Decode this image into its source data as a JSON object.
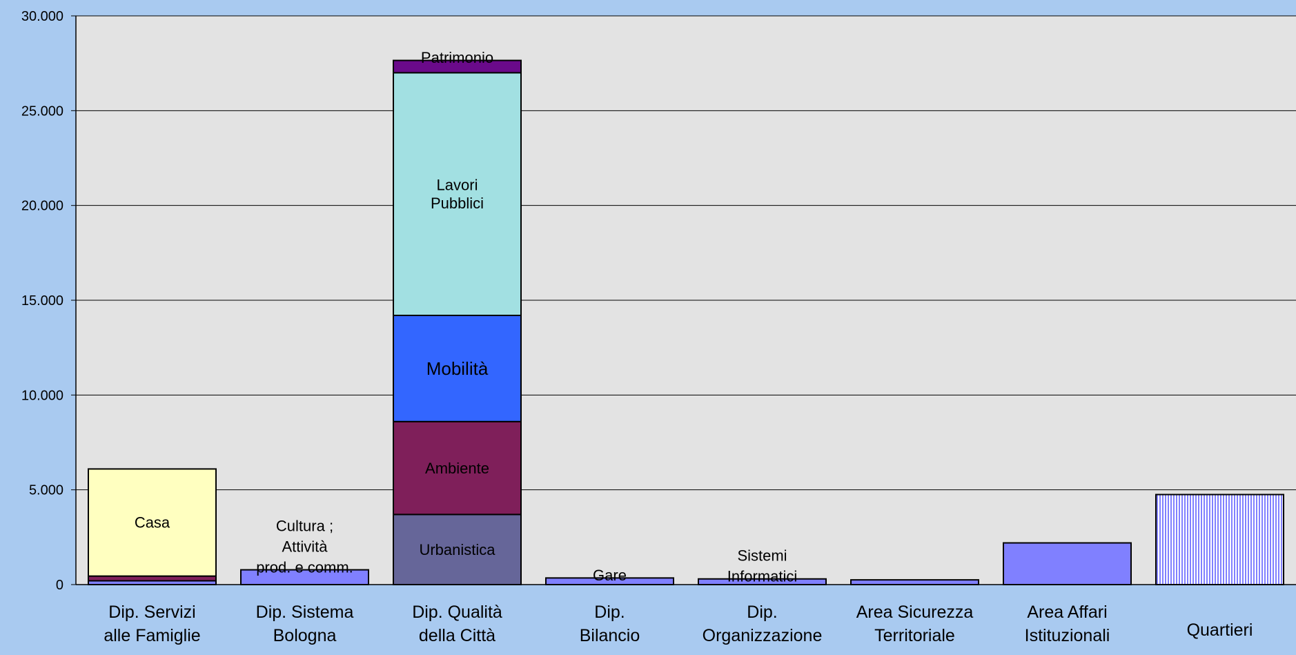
{
  "chart_data": {
    "type": "bar",
    "stacked": true,
    "ylim": [
      0,
      30000
    ],
    "yticks": [
      0,
      5000,
      10000,
      15000,
      20000,
      25000,
      30000
    ],
    "ytick_labels": [
      "0",
      "5.000",
      "10.000",
      "15.000",
      "20.000",
      "25.000",
      "30.000"
    ],
    "grid": true,
    "legend": "none",
    "title": "",
    "xlabel": "",
    "ylabel": "",
    "colors": {
      "plot_background": "#e3e3e3",
      "page_background": "#a9caf0",
      "gridline": "#000000"
    },
    "bars": [
      {
        "category": "Dip. Servizi\nalle Famiglie",
        "segments": [
          {
            "label": "",
            "value": 200,
            "color": "#8080ff"
          },
          {
            "label": "",
            "value": 250,
            "color": "#7f1f5a"
          },
          {
            "label": "Casa",
            "value": 5650,
            "color": "#ffffc0"
          }
        ]
      },
      {
        "category": "Dip. Sistema\nBologna",
        "segments": [
          {
            "label": "Cultura ;\nAttività\nprod. e comm.",
            "value": 780,
            "color": "#8080ff"
          }
        ]
      },
      {
        "category": "Dip. Qualità\ndella Città",
        "segments": [
          {
            "label": "Urbanistica",
            "value": 3700,
            "color": "#666699"
          },
          {
            "label": "Ambiente",
            "value": 4900,
            "color": "#7f1f5a"
          },
          {
            "label": "Mobilità",
            "value": 5600,
            "color": "#3366ff"
          },
          {
            "label": "Lavori\nPubblici",
            "value": 12800,
            "color": "#a2e0e2"
          },
          {
            "label": "Patrimonio",
            "value": 650,
            "color": "#6a0a8a"
          }
        ]
      },
      {
        "category": "Dip.\nBilancio",
        "segments": [
          {
            "label": "Gare",
            "value": 350,
            "color": "#8080ff"
          }
        ]
      },
      {
        "category": "Dip.\nOrganizzazione",
        "segments": [
          {
            "label": "Sistemi\nInformatici",
            "value": 300,
            "color": "#8080ff"
          }
        ]
      },
      {
        "category": "Area Sicurezza\nTerritoriale",
        "segments": [
          {
            "label": "",
            "value": 250,
            "color": "#8080ff"
          }
        ]
      },
      {
        "category": "Area Affari\nIstituzionali",
        "segments": [
          {
            "label": "",
            "value": 2200,
            "color": "#8080ff"
          }
        ]
      },
      {
        "category": "Quartieri",
        "segments": [
          {
            "label": "",
            "value": 4750,
            "color": "#8080ff",
            "pattern": "vertical-stripes"
          }
        ]
      }
    ]
  }
}
